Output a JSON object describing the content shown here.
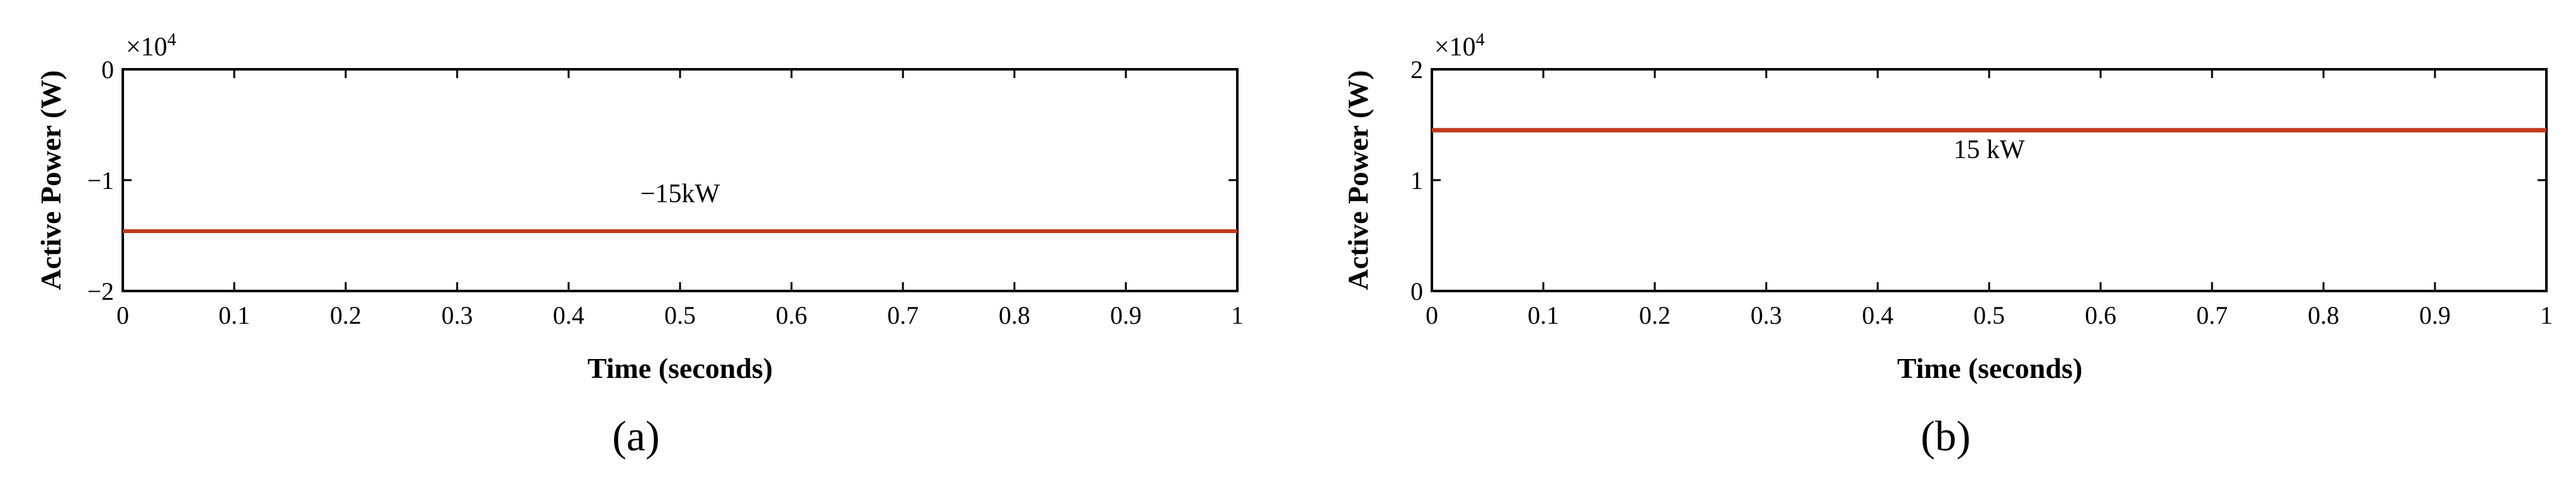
{
  "chart_data": [
    {
      "type": "line",
      "caption": "(a)",
      "xlabel": "Time (seconds)",
      "ylabel": "Active Power (W)",
      "exponent_label": "×10",
      "exponent_power": "4",
      "xlim": [
        0,
        1
      ],
      "ylim": [
        -2,
        0
      ],
      "xticks": [
        0,
        0.1,
        0.2,
        0.3,
        0.4,
        0.5,
        0.6,
        0.7,
        0.8,
        0.9,
        1
      ],
      "xtick_labels": [
        "0",
        "0.1",
        "0.2",
        "0.3",
        "0.4",
        "0.5",
        "0.6",
        "0.7",
        "0.8",
        "0.9",
        "1"
      ],
      "yticks": [
        -2,
        -1,
        0
      ],
      "ytick_labels": [
        "−2",
        "−1",
        "0"
      ],
      "annotation": {
        "text": "−15kW",
        "x": 0.5,
        "y": -1.2
      },
      "color": "#c0391b",
      "series": [
        {
          "x": [
            0,
            0.1,
            0.2,
            0.3,
            0.4,
            0.5,
            0.6,
            0.7,
            0.8,
            0.9,
            1
          ],
          "y": [
            -1.46,
            -1.46,
            -1.46,
            -1.46,
            -1.46,
            -1.46,
            -1.46,
            -1.46,
            -1.46,
            -1.46,
            -1.46
          ]
        }
      ]
    },
    {
      "type": "line",
      "caption": "(b)",
      "xlabel": "Time (seconds)",
      "ylabel": "Active Power (W)",
      "exponent_label": "×10",
      "exponent_power": "4",
      "xlim": [
        0,
        1
      ],
      "ylim": [
        0,
        2
      ],
      "xticks": [
        0,
        0.1,
        0.2,
        0.3,
        0.4,
        0.5,
        0.6,
        0.7,
        0.8,
        0.9,
        1
      ],
      "xtick_labels": [
        "0",
        "0.1",
        "0.2",
        "0.3",
        "0.4",
        "0.5",
        "0.6",
        "0.7",
        "0.8",
        "0.9",
        "1"
      ],
      "yticks": [
        0,
        1,
        2
      ],
      "ytick_labels": [
        "0",
        "1",
        "2"
      ],
      "annotation": {
        "text": "15 kW",
        "x": 0.5,
        "y": 1.2
      },
      "color": "#c0391b",
      "series": [
        {
          "x": [
            0,
            0.1,
            0.2,
            0.3,
            0.4,
            0.5,
            0.6,
            0.7,
            0.8,
            0.9,
            1
          ],
          "y": [
            1.45,
            1.45,
            1.45,
            1.45,
            1.45,
            1.45,
            1.45,
            1.45,
            1.45,
            1.45,
            1.45
          ]
        }
      ]
    }
  ]
}
